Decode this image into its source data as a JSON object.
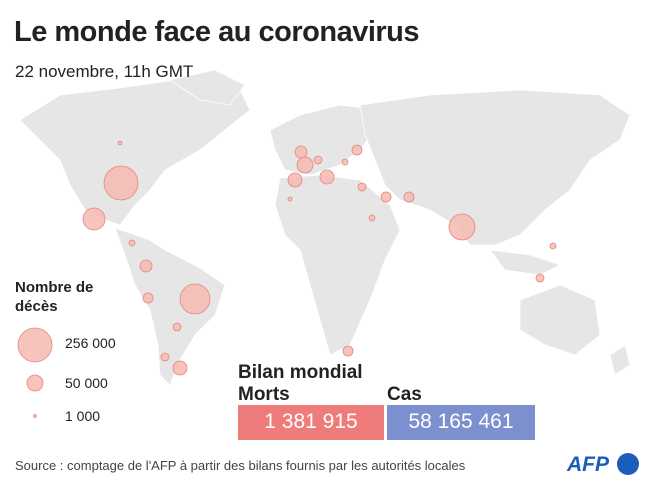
{
  "header": {
    "title": "Le monde face au coronavirus",
    "subtitle": "22 novembre, 11h GMT"
  },
  "legend": {
    "title": "Nombre de décès",
    "items": [
      "256 000",
      "50 000",
      "1 000"
    ]
  },
  "summary": {
    "title": "Bilan mondial",
    "deaths_label": "Morts",
    "deaths": "1 381 915",
    "cases_label": "Cas",
    "cases": "58 165 461"
  },
  "footer": {
    "source": "Source : comptage de l'AFP à partir des bilans fournis par les autorités locales",
    "logo": "AFP"
  }
}
